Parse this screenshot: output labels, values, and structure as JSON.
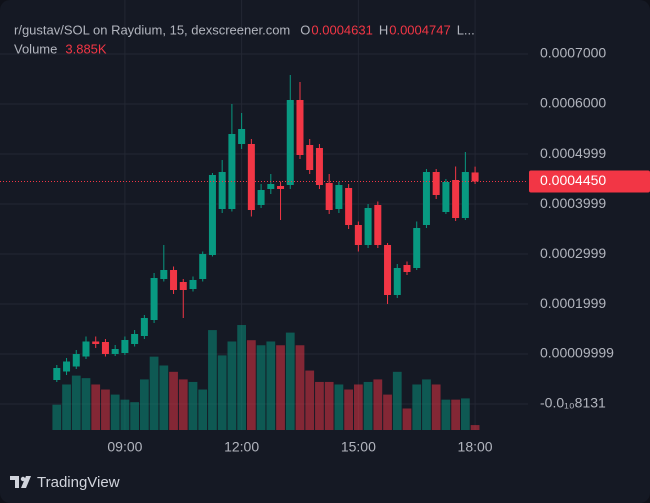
{
  "chart_data": {
    "type": "candlestick",
    "title": "r/gustav/SOL on Raydium, 15, dexscreener.com",
    "legend_letters": [
      "O",
      "H",
      "L..."
    ],
    "volume_title": "Volume",
    "volume_label": "3.885K",
    "up_color": "#089981",
    "down_color": "#f23645",
    "x": [
      7.25,
      7.5,
      7.75,
      8.0,
      8.25,
      8.5,
      8.75,
      9.0,
      9.25,
      9.5,
      9.75,
      10.0,
      10.25,
      10.5,
      10.75,
      11.0,
      11.25,
      11.5,
      11.75,
      12.0,
      12.25,
      12.5,
      12.75,
      13.0,
      13.25,
      13.5,
      13.75,
      14.0,
      14.25,
      14.5,
      14.75,
      15.0,
      15.25,
      15.5,
      15.75,
      16.0,
      16.25,
      16.5,
      16.75,
      17.0,
      17.25,
      17.5,
      17.75,
      18.0
    ],
    "open": [
      4.8e-05,
      6.5e-05,
      7.5e-05,
      9.5e-05,
      0.000125,
      0.000124,
      0.0001,
      0.000102,
      0.00012,
      0.000136,
      0.000168,
      0.00025,
      0.000268,
      0.000244,
      0.00023,
      0.00025,
      0.000298,
      0.00039,
      0.00039,
      0.00052,
      0.00052,
      0.000398,
      0.00043,
      0.000436,
      0.000438,
      0.000608,
      0.000518,
      0.000512,
      0.000442,
      0.00039,
      0.000432,
      0.000358,
      0.000318,
      0.000398,
      0.000318,
      0.000218,
      0.000278,
      0.000272,
      0.000358,
      0.000464,
      0.000384,
      0.000448,
      0.000372,
      0.0004631
    ],
    "high": [
      7.8e-05,
      9.2e-05,
      0.000108,
      0.000135,
      0.000135,
      0.00013,
      0.000118,
      0.000135,
      0.000148,
      0.000178,
      0.000262,
      0.000318,
      0.000275,
      0.00025,
      0.000255,
      0.000305,
      0.000462,
      0.000488,
      0.0006,
      0.000582,
      0.00053,
      0.00044,
      0.00046,
      0.000445,
      0.000658,
      0.000644,
      0.00053,
      0.00052,
      0.00046,
      0.000445,
      0.00044,
      0.000365,
      0.0004,
      0.000405,
      0.000322,
      0.00028,
      0.000285,
      0.000365,
      0.00047,
      0.00047,
      0.00045,
      0.000475,
      0.000504,
      0.0004747
    ],
    "low": [
      4.4e-05,
      5.8e-05,
      7e-05,
      9e-05,
      0.000112,
      9.5e-05,
      9.6e-05,
      9.8e-05,
      0.000115,
      0.00013,
      0.000162,
      0.000245,
      0.00022,
      0.000172,
      0.000225,
      0.000245,
      0.000295,
      0.000382,
      0.000385,
      0.00051,
      0.000375,
      0.000392,
      0.00042,
      0.000368,
      0.00043,
      0.00049,
      0.00046,
      0.00043,
      0.00038,
      0.000382,
      0.00035,
      0.000305,
      0.000312,
      0.000312,
      0.0002,
      0.000212,
      0.000258,
      0.000268,
      0.000352,
      0.00041,
      0.00038,
      0.000366,
      0.000368,
      0.00044
    ],
    "close": [
      7.2e-05,
      8.5e-05,
      0.0001,
      0.000125,
      0.00012,
      0.0001,
      0.00011,
      0.000128,
      0.00014,
      0.000172,
      0.000252,
      0.000268,
      0.000228,
      0.000228,
      0.000248,
      0.0003,
      0.000458,
      0.000464,
      0.00054,
      0.00055,
      0.000388,
      0.000428,
      0.00044,
      0.00043,
      0.000608,
      0.000498,
      0.000468,
      0.000438,
      0.000388,
      0.000438,
      0.000358,
      0.000318,
      0.000392,
      0.000318,
      0.000218,
      0.000272,
      0.000264,
      0.000352,
      0.000464,
      0.000418,
      0.000444,
      0.000372,
      0.000464,
      0.000445
    ],
    "volume": [
      20000,
      36000,
      43000,
      41000,
      36000,
      32000,
      28000,
      24000,
      22000,
      40000,
      58000,
      51000,
      46000,
      40000,
      38000,
      32000,
      79000,
      59000,
      70000,
      83000,
      71000,
      67000,
      70000,
      67000,
      77000,
      67000,
      47000,
      38000,
      38000,
      36000,
      32000,
      36000,
      38000,
      40000,
      28000,
      46000,
      17000,
      36000,
      40000,
      36000,
      24000,
      24000,
      25000,
      3885
    ],
    "volume_lim": [
      0,
      340000
    ],
    "last_price": {
      "value": 0.000445,
      "label": "0.0004450"
    },
    "xlim": [
      5.79,
      19.36
    ],
    "xticks": [
      {
        "value": 9,
        "label": "09:00"
      },
      {
        "value": 12,
        "label": "12:00"
      },
      {
        "value": 15,
        "label": "15:00"
      },
      {
        "value": 18,
        "label": "18:00"
      }
    ],
    "ylim": [
      -5.2e-05,
      0.000808
    ],
    "yticks": [
      {
        "value": -8.131e-11,
        "label": "-0.0₁₀8131"
      },
      9.999e-05,
      0.0001999,
      0.0002999,
      0.0003999,
      0.0004999,
      {
        "value": 0.0006,
        "label": "0.0006000"
      },
      {
        "value": 0.0007,
        "label": "0.0007000"
      }
    ],
    "grid": true,
    "footer": "TradingView"
  }
}
